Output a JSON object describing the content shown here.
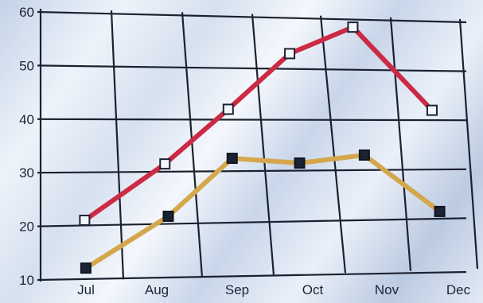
{
  "chart_data": {
    "type": "line",
    "categories": [
      "Jul",
      "Aug",
      "Sep",
      "Oct",
      "Nov",
      "Dec"
    ],
    "ylim": [
      10,
      60
    ],
    "yticks": [
      10,
      20,
      30,
      40,
      50,
      60
    ],
    "grid": true,
    "series": [
      {
        "color": "#cc2a44",
        "marker": "hollow-square",
        "points": [
          {
            "x": "Jul",
            "y": 21
          },
          {
            "x": "Aug",
            "y": 31.5
          },
          {
            "x": "Sep",
            "y": 42
          },
          {
            "x": "Oct",
            "y": 53
          },
          {
            "x": "Oct–Nov",
            "y": 58.5
          },
          {
            "x": "Nov–Dec",
            "y": 42
          }
        ]
      },
      {
        "color": "#d4a74c",
        "marker": "filled-square",
        "points": [
          {
            "x": "Jul",
            "y": 12
          },
          {
            "x": "Aug",
            "y": 21.5
          },
          {
            "x": "Sep",
            "y": 32.5
          },
          {
            "x": "Oct",
            "y": 31.5
          },
          {
            "x": "Oct–Nov",
            "y": 33
          },
          {
            "x": "Nov–Dec",
            "y": 21.5
          }
        ]
      }
    ]
  }
}
